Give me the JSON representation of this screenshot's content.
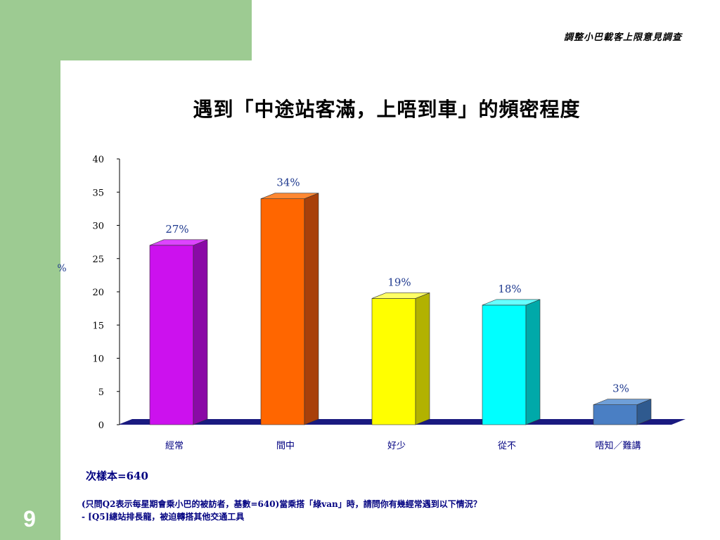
{
  "header": {
    "survey_title": "調整小巴載客上限意見調查"
  },
  "page_number": "9",
  "chart_data": {
    "type": "bar",
    "title": "遇到「中途站客滿，上唔到車」的頻密程度",
    "ylabel": "%",
    "xlabel": "",
    "categories": [
      "經常",
      "間中",
      "好少",
      "從不",
      "唔知／難講"
    ],
    "values": [
      27,
      34,
      19,
      18,
      3
    ],
    "data_labels": [
      "27%",
      "34%",
      "19%",
      "18%",
      "3%"
    ],
    "ylim": [
      0,
      40
    ],
    "yticks": [
      0,
      5,
      10,
      15,
      20,
      25,
      30,
      35,
      40
    ],
    "colors": [
      "#cc11ee",
      "#ff6600",
      "#ffff00",
      "#00ffff",
      "#4a7fc4"
    ],
    "side_colors": [
      "#8a0aa6",
      "#a8400a",
      "#b2b200",
      "#00a9a9",
      "#2f5a8f"
    ],
    "top_colors": [
      "#dd44ff",
      "#ff8833",
      "#ffff66",
      "#66ffff",
      "#6f9fd8"
    ],
    "floor_color": "#1a1a80",
    "label_color": "#1f3a8f"
  },
  "sample_size": "次樣本=640",
  "footnote": {
    "line1": "(只問Q2表示每星期會乘小巴的被訪者，基數=640)當乘搭「綠van」時，請問你有幾經常遇到以下情況？",
    "line2": "- [Q5]總站排長龍，被迫轉搭其他交通工具"
  }
}
